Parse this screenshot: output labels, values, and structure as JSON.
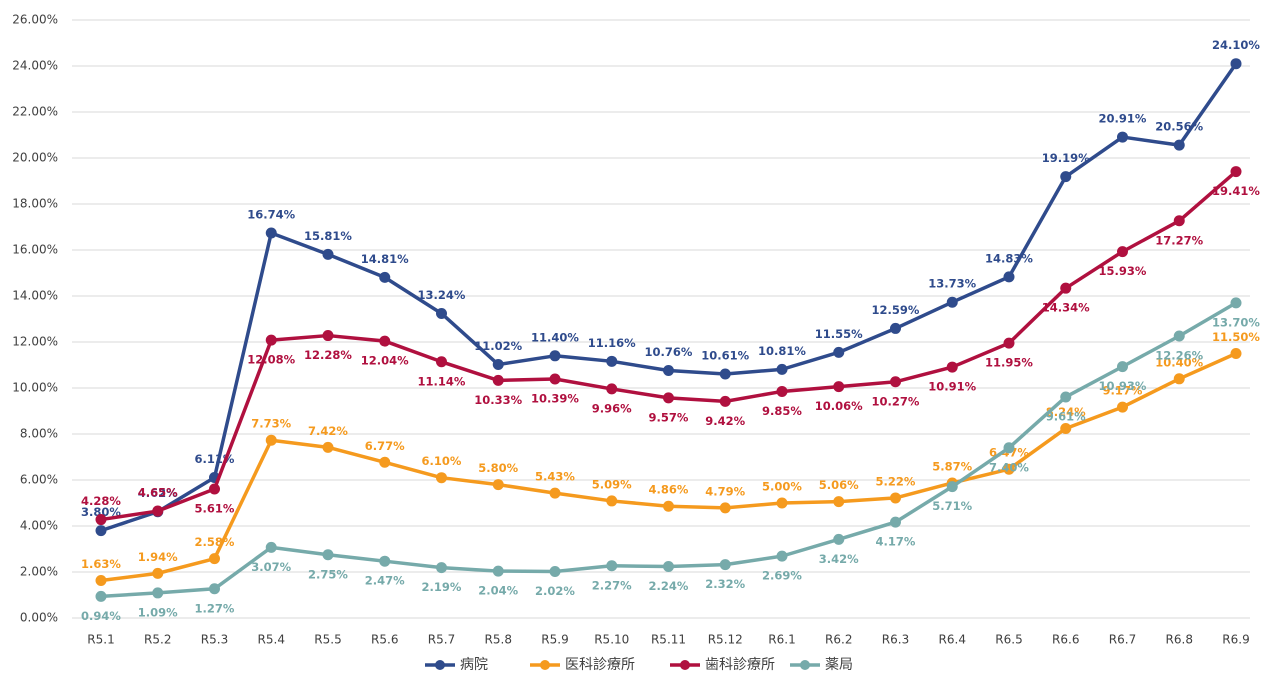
{
  "chart_data": {
    "type": "line",
    "categories": [
      "R5.1",
      "R5.2",
      "R5.3",
      "R5.4",
      "R5.5",
      "R5.6",
      "R5.7",
      "R5.8",
      "R5.9",
      "R5.10",
      "R5.11",
      "R5.12",
      "R6.1",
      "R6.2",
      "R6.3",
      "R6.4",
      "R6.5",
      "R6.6",
      "R6.7",
      "R6.8",
      "R6.9"
    ],
    "ylim": [
      0,
      26
    ],
    "yticks": [
      {
        "value": 0,
        "label": "0.00%"
      },
      {
        "value": 2,
        "label": "2.00%"
      },
      {
        "value": 4,
        "label": "4.00%"
      },
      {
        "value": 6,
        "label": "6.00%"
      },
      {
        "value": 8,
        "label": "8.00%"
      },
      {
        "value": 10,
        "label": "10.00%"
      },
      {
        "value": 12,
        "label": "12.00%"
      },
      {
        "value": 14,
        "label": "14.00%"
      },
      {
        "value": 16,
        "label": "16.00%"
      },
      {
        "value": 18,
        "label": "18.00%"
      },
      {
        "value": 20,
        "label": "20.00%"
      },
      {
        "value": 22,
        "label": "22.00%"
      },
      {
        "value": 24,
        "label": "24.00%"
      },
      {
        "value": 26,
        "label": "26.00%"
      }
    ],
    "grid": true,
    "legend": "bottom",
    "series": [
      {
        "name": "病院",
        "color": "#2f4b8c",
        "values": [
          3.8,
          4.62,
          6.11,
          16.74,
          15.81,
          14.81,
          13.24,
          11.02,
          11.4,
          11.16,
          10.76,
          10.61,
          10.81,
          11.55,
          12.59,
          13.73,
          14.83,
          19.19,
          20.91,
          20.56,
          24.1
        ],
        "value_labels": [
          "3.80%",
          "4.62%",
          "6.11%",
          "16.74%",
          "15.81%",
          "14.81%",
          "13.24%",
          "11.02%",
          "11.40%",
          "11.16%",
          "10.76%",
          "10.61%",
          "10.81%",
          "11.55%",
          "12.59%",
          "13.73%",
          "14.83%",
          "19.19%",
          "20.91%",
          "20.56%",
          "24.10%"
        ]
      },
      {
        "name": "医科診療所",
        "color": "#f59a1e",
        "values": [
          1.63,
          1.94,
          2.58,
          7.73,
          7.42,
          6.77,
          6.1,
          5.8,
          5.43,
          5.09,
          4.86,
          4.79,
          5.0,
          5.06,
          5.22,
          5.87,
          6.47,
          8.24,
          9.17,
          10.4,
          11.5
        ],
        "value_labels": [
          "1.63%",
          "1.94%",
          "2.58%",
          "7.73%",
          "7.42%",
          "6.77%",
          "6.10%",
          "5.80%",
          "5.43%",
          "5.09%",
          "4.86%",
          "4.79%",
          "5.00%",
          "5.06%",
          "5.22%",
          "5.87%",
          "6.47%",
          "8.24%",
          "9.17%",
          "10.40%",
          "11.50%"
        ]
      },
      {
        "name": "歯科診療所",
        "color": "#b0103f",
        "values": [
          4.28,
          4.65,
          5.61,
          12.08,
          12.28,
          12.04,
          11.14,
          10.33,
          10.39,
          9.96,
          9.57,
          9.42,
          9.85,
          10.06,
          10.27,
          10.91,
          11.95,
          14.34,
          15.93,
          17.27,
          19.41
        ],
        "value_labels": [
          "4.28%",
          "4.65%",
          "5.61%",
          "12.08%",
          "12.28%",
          "12.04%",
          "11.14%",
          "10.33%",
          "10.39%",
          "9.96%",
          "9.57%",
          "9.42%",
          "9.85%",
          "10.06%",
          "10.27%",
          "10.91%",
          "11.95%",
          "14.34%",
          "15.93%",
          "17.27%",
          "19.41%"
        ]
      },
      {
        "name": "薬局",
        "color": "#76aaaa",
        "values": [
          0.94,
          1.09,
          1.27,
          3.07,
          2.75,
          2.47,
          2.19,
          2.04,
          2.02,
          2.27,
          2.24,
          2.32,
          2.69,
          3.42,
          4.17,
          5.71,
          7.4,
          9.61,
          10.93,
          12.26,
          13.7
        ],
        "value_labels": [
          "0.94%",
          "1.09%",
          "1.27%",
          "3.07%",
          "2.75%",
          "2.47%",
          "2.19%",
          "2.04%",
          "2.02%",
          "2.27%",
          "2.24%",
          "2.32%",
          "2.69%",
          "3.42%",
          "4.17%",
          "5.71%",
          "7.40%",
          "9.61%",
          "10.93%",
          "12.26%",
          "13.70%"
        ]
      }
    ]
  }
}
